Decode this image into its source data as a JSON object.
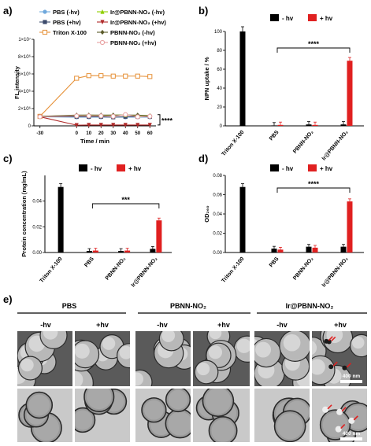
{
  "panels": {
    "a": "a)",
    "b": "b)",
    "c": "c)",
    "d": "d)",
    "e": "e)"
  },
  "chart_data": [
    {
      "id": "a",
      "type": "line",
      "xlabel": "Time / min",
      "ylabel": "FL intensity",
      "x": [
        -30,
        0,
        10,
        20,
        30,
        40,
        50,
        60
      ],
      "xticks": [
        "-30",
        "0",
        "10",
        "20",
        "30",
        "40",
        "50",
        "60"
      ],
      "yticks": [
        "0",
        "2×10⁶",
        "4×10⁶",
        "6×10⁶",
        "8×10⁶",
        "1×10⁷"
      ],
      "ylim": [
        0,
        10000000
      ],
      "significance": "****",
      "series": [
        {
          "name": "PBS (-hv)",
          "color": "#6fa8dc",
          "marker": "circle",
          "values": [
            1050000,
            1000000,
            1000000,
            1000000,
            1000000,
            1000000,
            1000000,
            1000000
          ]
        },
        {
          "name": "PBS (+hv)",
          "color": "#3b4a6b",
          "marker": "square",
          "values": [
            1050000,
            1050000,
            1050000,
            1050000,
            1000000,
            1050000,
            1050000,
            1050000
          ]
        },
        {
          "name": "Triton X-100",
          "color": "#e69138",
          "marker": "open-square",
          "values": [
            1100000,
            5500000,
            5800000,
            5800000,
            5750000,
            5750000,
            5750000,
            5700000
          ]
        },
        {
          "name": "Ir@PBNN-NO₂ (-hv)",
          "color": "#8fce00",
          "marker": "triangle",
          "values": [
            1100000,
            1200000,
            1250000,
            1200000,
            1250000,
            1250000,
            1200000,
            1200000
          ]
        },
        {
          "name": "Ir@PBNN-NO₂ (+hv)",
          "color": "#b02a2a",
          "marker": "down-triangle",
          "values": [
            1050000,
            80000,
            100000,
            100000,
            100000,
            100000,
            100000,
            100000
          ]
        },
        {
          "name": "PBNN-NO₂ (-hv)",
          "color": "#5b5b2a",
          "marker": "diamond",
          "values": [
            1100000,
            1250000,
            1250000,
            1250000,
            1250000,
            1250000,
            1250000,
            1150000
          ]
        },
        {
          "name": "PBNN-NO₂ (+hv)",
          "color": "#e8a0a0",
          "marker": "open-circle",
          "values": [
            1050000,
            1150000,
            1150000,
            1150000,
            1100000,
            1300000,
            1050000,
            1100000
          ]
        }
      ]
    },
    {
      "id": "b",
      "type": "bar",
      "ylabel": "NPN uptake / %",
      "categories": [
        "Triton X-100",
        "PBS",
        "PBNN-NO₂",
        "Ir@PBNN-NO₂"
      ],
      "yticks": [
        "0",
        "20",
        "40",
        "60",
        "80",
        "100"
      ],
      "ylim": [
        0,
        100
      ],
      "significance": "****",
      "series": [
        {
          "name": "- hv",
          "color": "#000000",
          "values": [
            100,
            0.5,
            1.5,
            1.5
          ]
        },
        {
          "name": "+ hv",
          "color": "#e02020",
          "values": [
            null,
            1.0,
            1.0,
            69
          ]
        }
      ]
    },
    {
      "id": "c",
      "type": "bar",
      "ylabel": "Protein concentration (mg/mL)",
      "categories": [
        "Triton X-100",
        "PBS",
        "PBNN-NO₂",
        "Ir@PBNN-NO₂"
      ],
      "yticks": [
        "0.00",
        "0.02",
        "0.04"
      ],
      "ylim": [
        0,
        0.06
      ],
      "significance": "***",
      "series": [
        {
          "name": "- hv",
          "color": "#000000",
          "values": [
            0.051,
            0.0012,
            0.0012,
            0.0028
          ]
        },
        {
          "name": "+ hv",
          "color": "#e02020",
          "values": [
            null,
            0.0015,
            0.0015,
            0.025
          ]
        }
      ]
    },
    {
      "id": "d",
      "type": "bar",
      "ylabel": "OD₂₆₀",
      "categories": [
        "Triton X-100",
        "PBS",
        "PBNN-NO₂",
        "Ir@PBNN-NO₂"
      ],
      "yticks": [
        "0.00",
        "0.02",
        "0.04",
        "0.06",
        "0.08"
      ],
      "ylim": [
        0,
        0.08
      ],
      "significance": "****",
      "series": [
        {
          "name": "- hv",
          "color": "#000000",
          "values": [
            0.068,
            0.004,
            0.006,
            0.006
          ]
        },
        {
          "name": "+ hv",
          "color": "#e02020",
          "values": [
            null,
            0.003,
            0.005,
            0.053
          ]
        }
      ]
    }
  ],
  "legend_bar": {
    "minus": "- hv",
    "plus": "+ hv"
  },
  "tem": {
    "groups": [
      {
        "title": "PBS",
        "minus": "-hv",
        "plus": "+hv"
      },
      {
        "title": "PBNN-NO₂",
        "minus": "-hv",
        "plus": "+hv"
      },
      {
        "title": "Ir@PBNN-NO₂",
        "minus": "-hv",
        "plus": "+hv"
      }
    ],
    "scale_label": "400 nm"
  }
}
